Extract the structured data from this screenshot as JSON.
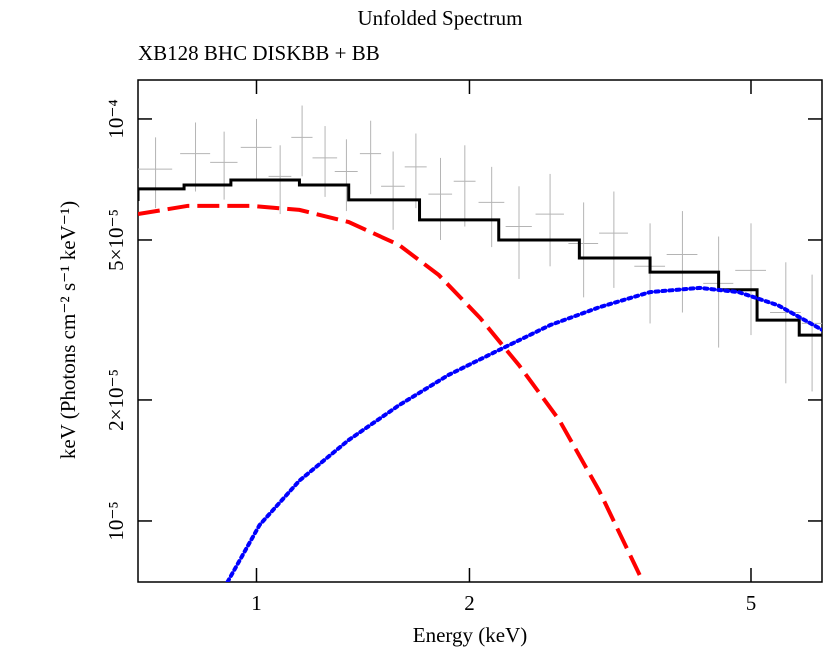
{
  "chart_data": {
    "type": "line",
    "title": "Unfolded Spectrum",
    "subtitle": "XB128 BHC DISKBB + BB",
    "xlabel": "Energy (keV)",
    "ylabel": "keV (Photons cm⁻² s⁻¹ keV⁻¹)",
    "xscale": "log",
    "yscale": "log",
    "xlim": [
      0.68,
      6.3
    ],
    "ylim": [
      7.05e-06,
      0.000125
    ],
    "xticks": [
      1,
      2,
      5
    ],
    "yticks": [
      {
        "value": 0.0001,
        "label": "10⁻⁴"
      },
      {
        "value": 5e-05,
        "label": "5×10⁻⁵"
      },
      {
        "value": 2e-05,
        "label": "2×10⁻⁵"
      },
      {
        "value": 1e-05,
        "label": "10⁻⁵"
      }
    ],
    "points": {
      "color": "#b4b4b4",
      "x": [
        0.72,
        0.82,
        0.9,
        1.0,
        1.08,
        1.16,
        1.25,
        1.34,
        1.45,
        1.56,
        1.68,
        1.82,
        1.97,
        2.15,
        2.35,
        2.6,
        2.9,
        3.2,
        3.6,
        4.0,
        4.5,
        5.0,
        5.6,
        6.1
      ],
      "xerr": [
        0.04,
        0.04,
        0.04,
        0.05,
        0.04,
        0.04,
        0.05,
        0.05,
        0.05,
        0.06,
        0.06,
        0.07,
        0.07,
        0.09,
        0.1,
        0.12,
        0.14,
        0.15,
        0.18,
        0.2,
        0.22,
        0.25,
        0.28,
        0.2
      ],
      "values": [
        7.5e-05,
        8.2e-05,
        7.8e-05,
        8.5e-05,
        7.2e-05,
        9e-05,
        8e-05,
        7.4e-05,
        8.2e-05,
        6.8e-05,
        7.6e-05,
        6.5e-05,
        7e-05,
        6.2e-05,
        5.4e-05,
        5.8e-05,
        4.9e-05,
        5.2e-05,
        4.3e-05,
        4.6e-05,
        3.9e-05,
        4.2e-05,
        3.3e-05,
        3.1e-05
      ],
      "errors": [
        1.5e-05,
        1.6e-05,
        1.5e-05,
        1.5e-05,
        1.4e-05,
        1.8e-05,
        1.6e-05,
        1.5e-05,
        1.7e-05,
        1.5e-05,
        1.6e-05,
        1.5e-05,
        1.6e-05,
        1.4e-05,
        1.4e-05,
        1.5e-05,
        1.3e-05,
        1.4e-05,
        1.2e-05,
        1.3e-05,
        1.2e-05,
        1.3e-05,
        1.1e-05,
        1e-05
      ]
    },
    "series": [
      {
        "color": "#000000",
        "style": "step",
        "x": [
          0.68,
          0.79,
          0.92,
          1.15,
          1.35,
          1.7,
          2.2,
          2.86,
          3.6,
          4.5,
          5.1,
          5.85,
          6.3
        ],
        "values": [
          6.25e-05,
          6.7e-05,
          6.85e-05,
          7.05e-05,
          6.85e-05,
          6.29e-05,
          5.61e-05,
          5e-05,
          4.51e-05,
          4.16e-05,
          3.76e-05,
          3.16e-05,
          2.9e-05
        ]
      },
      {
        "color": "#ff0000",
        "style": "dashed",
        "x": [
          0.68,
          0.8,
          0.98,
          1.15,
          1.35,
          1.59,
          1.81,
          2.07,
          2.35,
          2.68,
          3.05,
          3.48
        ],
        "values": [
          5.8e-05,
          6.08e-05,
          6.08e-05,
          5.94e-05,
          5.54e-05,
          4.86e-05,
          4.09e-05,
          3.2e-05,
          2.44e-05,
          1.78e-05,
          1.19e-05,
          7.34e-06
        ]
      },
      {
        "color": "#0000ff",
        "style": "dotted",
        "x": [
          0.91,
          1.01,
          1.15,
          1.35,
          1.59,
          1.87,
          2.2,
          2.6,
          3.05,
          3.6,
          4.23,
          4.8,
          5.46,
          6.3
        ],
        "values": [
          7.05e-06,
          9.77e-06,
          1.26e-05,
          1.59e-05,
          1.94e-05,
          2.31e-05,
          2.66e-05,
          3.07e-05,
          3.4e-05,
          3.71e-05,
          3.8e-05,
          3.71e-05,
          3.44e-05,
          2.99e-05
        ]
      }
    ]
  }
}
